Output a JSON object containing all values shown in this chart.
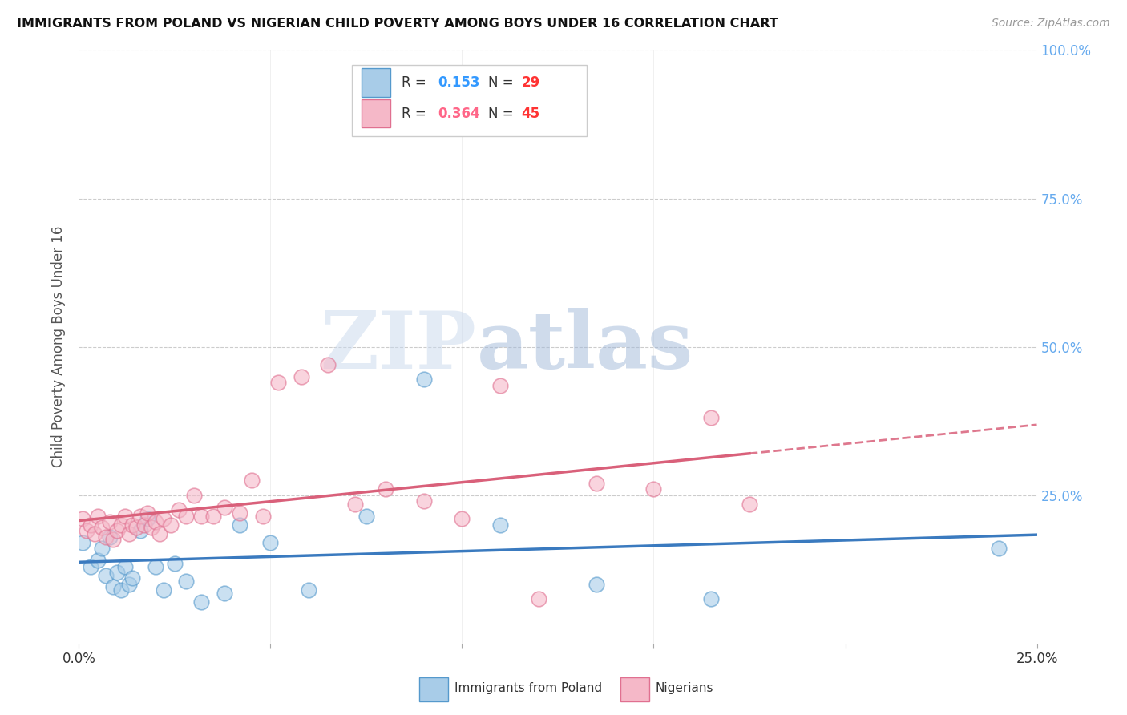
{
  "title": "IMMIGRANTS FROM POLAND VS NIGERIAN CHILD POVERTY AMONG BOYS UNDER 16 CORRELATION CHART",
  "source": "Source: ZipAtlas.com",
  "ylabel": "Child Poverty Among Boys Under 16",
  "xlim": [
    0,
    0.25
  ],
  "ylim": [
    0,
    1.0
  ],
  "blue_color": "#a8cce8",
  "blue_edge_color": "#5599cc",
  "pink_color": "#f5b8c8",
  "pink_edge_color": "#e07090",
  "blue_line_color": "#3a7abf",
  "pink_line_color": "#d9607a",
  "right_tick_color": "#66aaee",
  "poland_x": [
    0.001,
    0.003,
    0.005,
    0.006,
    0.007,
    0.008,
    0.009,
    0.01,
    0.011,
    0.012,
    0.013,
    0.014,
    0.016,
    0.018,
    0.02,
    0.022,
    0.025,
    0.028,
    0.032,
    0.038,
    0.042,
    0.05,
    0.06,
    0.075,
    0.09,
    0.11,
    0.135,
    0.165,
    0.24
  ],
  "poland_y": [
    0.17,
    0.13,
    0.14,
    0.16,
    0.115,
    0.18,
    0.095,
    0.12,
    0.09,
    0.13,
    0.1,
    0.11,
    0.19,
    0.21,
    0.13,
    0.09,
    0.135,
    0.105,
    0.07,
    0.085,
    0.2,
    0.17,
    0.09,
    0.215,
    0.445,
    0.2,
    0.1,
    0.075,
    0.16
  ],
  "nigeria_x": [
    0.001,
    0.002,
    0.003,
    0.004,
    0.005,
    0.006,
    0.007,
    0.008,
    0.009,
    0.01,
    0.011,
    0.012,
    0.013,
    0.014,
    0.015,
    0.016,
    0.017,
    0.018,
    0.019,
    0.02,
    0.021,
    0.022,
    0.024,
    0.026,
    0.028,
    0.03,
    0.032,
    0.035,
    0.038,
    0.042,
    0.045,
    0.048,
    0.052,
    0.058,
    0.065,
    0.072,
    0.08,
    0.09,
    0.1,
    0.11,
    0.12,
    0.135,
    0.15,
    0.165,
    0.175
  ],
  "nigeria_y": [
    0.21,
    0.19,
    0.2,
    0.185,
    0.215,
    0.195,
    0.18,
    0.205,
    0.175,
    0.19,
    0.2,
    0.215,
    0.185,
    0.2,
    0.195,
    0.215,
    0.2,
    0.22,
    0.195,
    0.205,
    0.185,
    0.21,
    0.2,
    0.225,
    0.215,
    0.25,
    0.215,
    0.215,
    0.23,
    0.22,
    0.275,
    0.215,
    0.44,
    0.45,
    0.47,
    0.235,
    0.26,
    0.24,
    0.21,
    0.435,
    0.075,
    0.27,
    0.26,
    0.38,
    0.235
  ]
}
